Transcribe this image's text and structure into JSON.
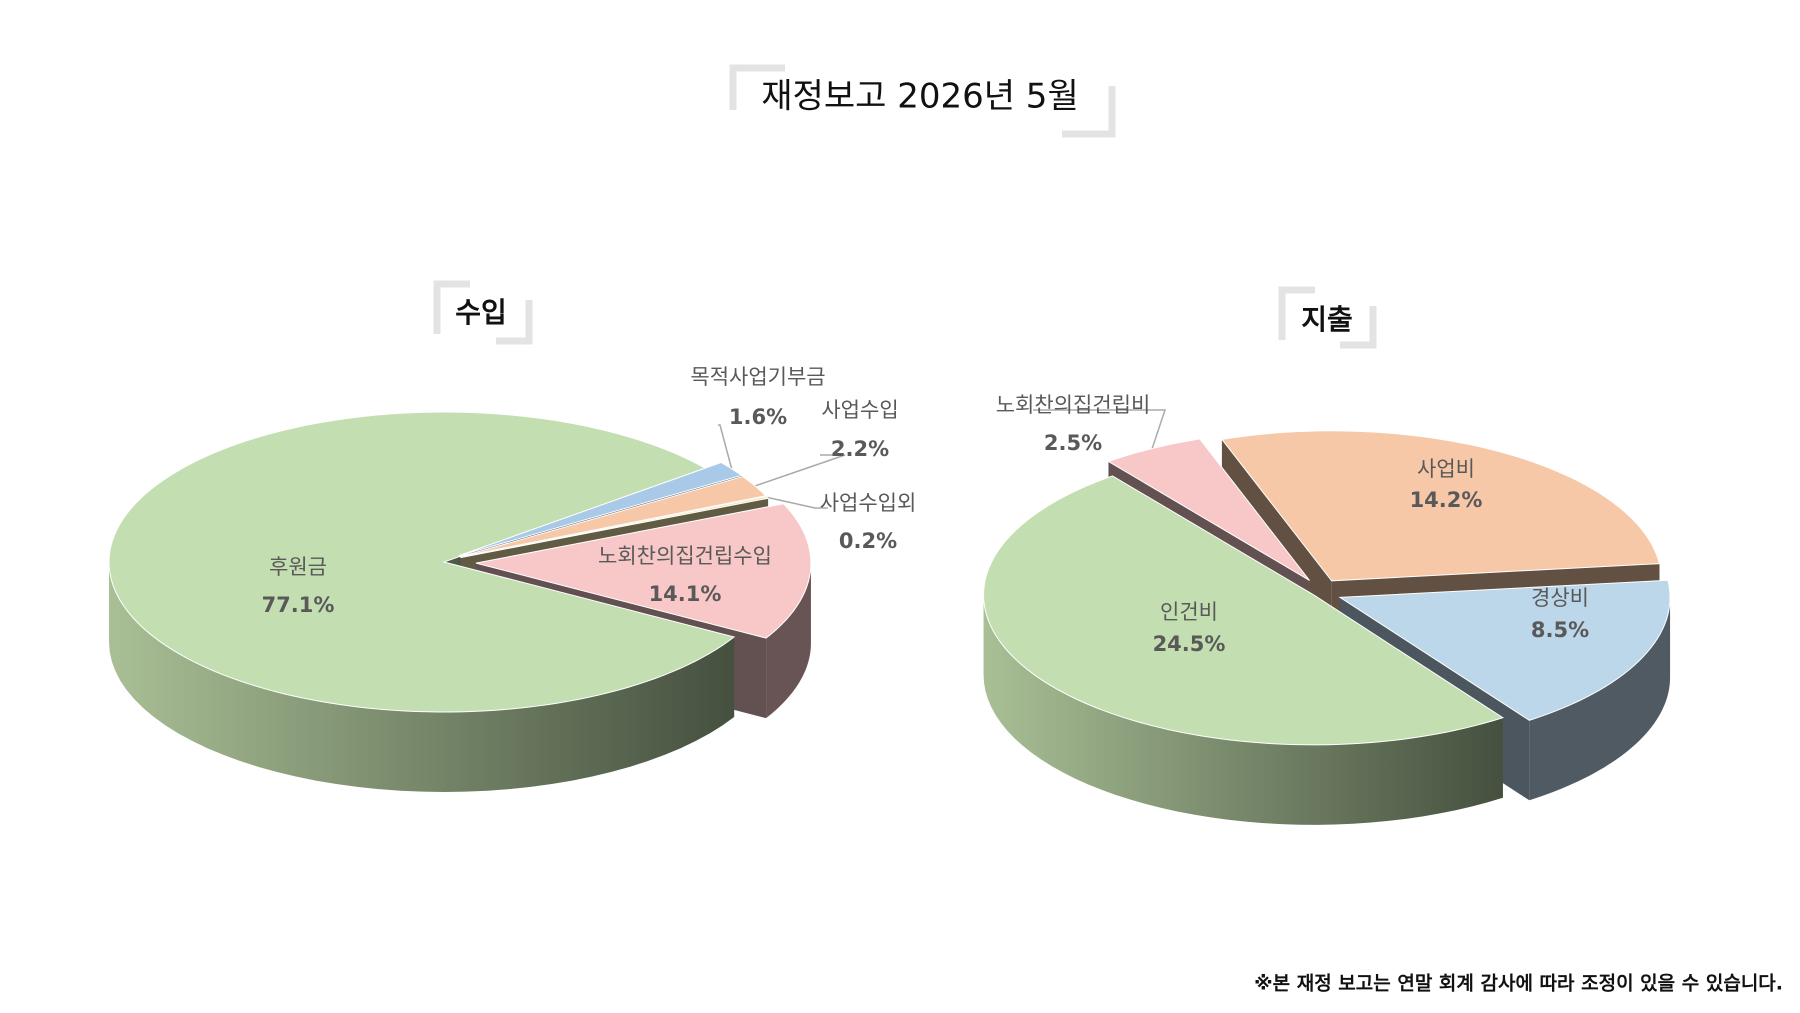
{
  "page": {
    "title": "재정보고 2026년 5월",
    "note": "※본 재정 보고는 연말 회계 감사에 따라 조정이 있을 수 있습니다."
  },
  "chart_data": [
    {
      "type": "pie3d",
      "title": "수입",
      "categories": [
        "후원금",
        "목적사업기부금",
        "사업수입",
        "사업수입외",
        "노회찬의집건립수입"
      ],
      "values": [
        77.1,
        1.6,
        2.2,
        0.2,
        14.1
      ],
      "value_labels": [
        "77.1%",
        "1.6%",
        "2.2%",
        "0.2%",
        "14.1%"
      ],
      "colors": [
        "#c3deb0",
        "#a9c9e8",
        "#f6c8a8",
        "#f3e4a8",
        "#f8c8c8"
      ]
    },
    {
      "type": "pie3d",
      "title": "지출",
      "categories": [
        "인건비",
        "노회찬의집건립비",
        "사업비",
        "경상비"
      ],
      "values": [
        24.5,
        2.5,
        14.2,
        8.5
      ],
      "value_labels": [
        "24.5%",
        "2.5%",
        "14.2%",
        "8.5%"
      ],
      "colors": [
        "#c3deb0",
        "#f8c8c8",
        "#f6c8a8",
        "#bcd6ea"
      ]
    }
  ]
}
